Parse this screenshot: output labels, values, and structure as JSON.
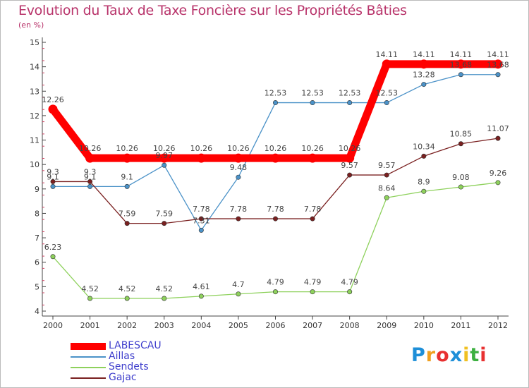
{
  "title": "Evolution du Taux de Taxe Foncière sur les Propriétés Bâties",
  "subtitle": "(en %)",
  "logo": {
    "text": "Proxiti",
    "letter_colors": [
      "#1e8fd8",
      "#f0a020",
      "#e83030",
      "#1e8fd8",
      "#f0c020",
      "#3cb040",
      "#e83030"
    ]
  },
  "chart_data": {
    "type": "line",
    "title": "Evolution du Taux de Taxe Foncière sur les Propriétés Bâties",
    "ylabel": "(en %)",
    "xlabel": "",
    "ylim": [
      4,
      15
    ],
    "yticks": [
      "4",
      "5",
      "6",
      "7",
      "8",
      "9",
      "10",
      "11",
      "12",
      "13",
      "14",
      "15"
    ],
    "grid": false,
    "legend_position": "bottom-left",
    "x": [
      "2000",
      "2001",
      "2002",
      "2003",
      "2004",
      "2005",
      "2006",
      "2007",
      "2008",
      "2009",
      "2010",
      "2011",
      "2012"
    ],
    "series": [
      {
        "name": "LABESCAU",
        "color": "#ff0000",
        "values": [
          12.26,
          10.26,
          10.26,
          10.26,
          10.26,
          10.26,
          10.26,
          10.26,
          10.26,
          14.11,
          14.11,
          14.11,
          14.11
        ],
        "labels": [
          "12.26",
          "10.26",
          "10.26",
          "10.26",
          "10.26",
          "10.26",
          "10.26",
          "10.26",
          "10.26",
          "14.11",
          "14.11",
          "14.11",
          "14.11"
        ]
      },
      {
        "name": "Aillas",
        "color": "#4b92c8",
        "values": [
          9.1,
          9.1,
          9.1,
          9.97,
          7.31,
          9.48,
          12.53,
          12.53,
          12.53,
          12.53,
          13.28,
          13.68,
          13.68
        ],
        "labels": [
          "9.1",
          "9.1",
          "9.1",
          "9.97",
          "7.31",
          "9.48",
          "12.53",
          "12.53",
          "12.53",
          "12.53",
          "13.28",
          "13.68",
          "13.68"
        ]
      },
      {
        "name": "Sendets",
        "color": "#8ed15c",
        "values": [
          6.23,
          4.52,
          4.52,
          4.52,
          4.61,
          4.7,
          4.79,
          4.79,
          4.79,
          8.64,
          8.9,
          9.08,
          9.26
        ],
        "labels": [
          "6.23",
          "4.52",
          "4.52",
          "4.52",
          "4.61",
          "4.7",
          "4.79",
          "4.79",
          "4.79",
          "8.64",
          "8.9",
          "9.08",
          "9.26"
        ]
      },
      {
        "name": "Gajac",
        "color": "#7a2020",
        "values": [
          9.3,
          9.3,
          7.59,
          7.59,
          7.78,
          7.78,
          7.78,
          7.78,
          9.57,
          9.57,
          10.34,
          10.85,
          11.07
        ],
        "labels": [
          "9.3",
          "9.3",
          "7.59",
          "7.59",
          "7.78",
          "7.78",
          "7.78",
          "7.78",
          "9.57",
          "9.57",
          "10.34",
          "10.85",
          "11.07"
        ]
      }
    ]
  }
}
